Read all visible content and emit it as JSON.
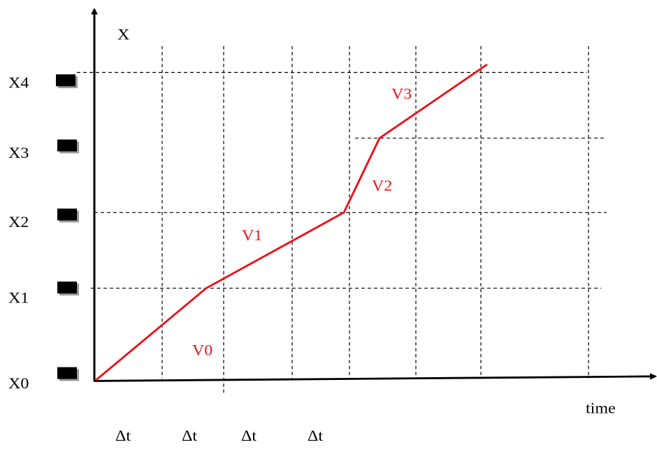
{
  "axes": {
    "y_label": "X",
    "x_label": "time"
  },
  "levels": [
    "X0",
    "X1",
    "X2",
    "X3",
    "X4"
  ],
  "velocities": [
    "V0",
    "V1",
    "V2",
    "V3"
  ],
  "intervals": [
    "Δt",
    "Δt",
    "Δt",
    "Δt"
  ]
}
